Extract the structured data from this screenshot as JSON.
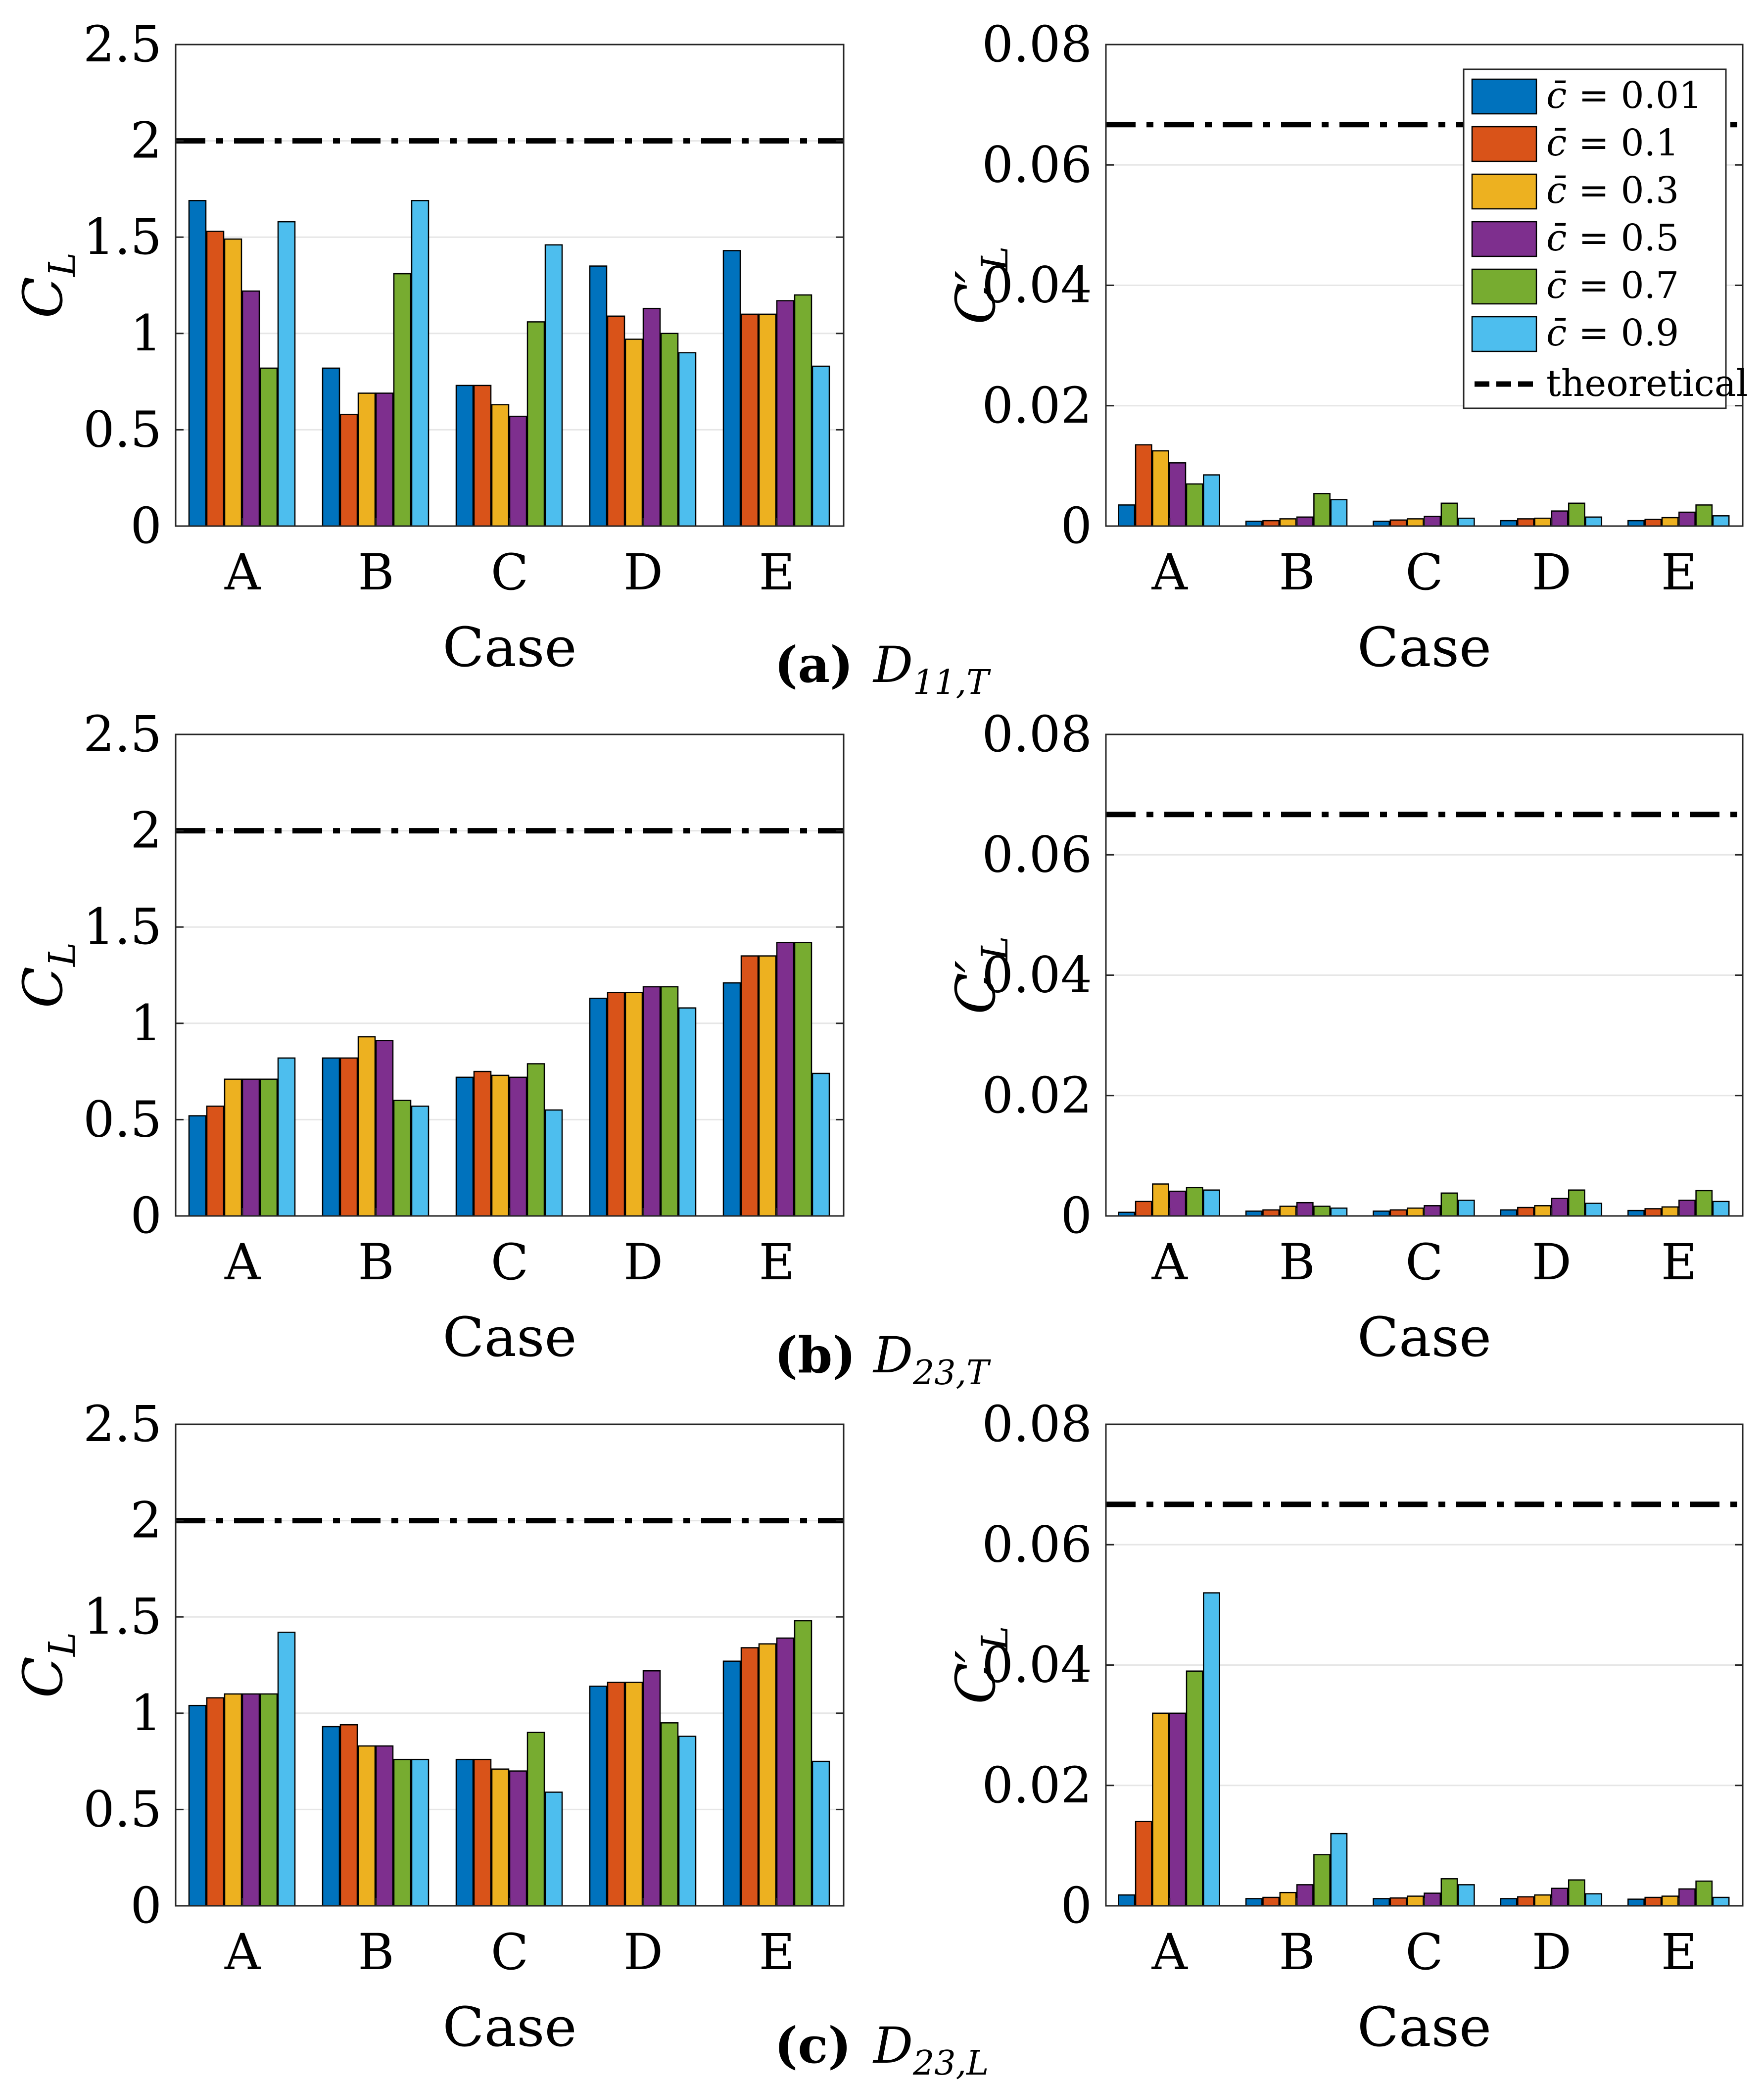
{
  "figure": {
    "colors": {
      "c001": "#0072BD",
      "c01": "#D95319",
      "c03": "#EDB120",
      "c05": "#7E2F8E",
      "c07": "#77AC30",
      "c09": "#4DBEEE",
      "theory": "#000000",
      "grid": "#e6e6e6"
    },
    "series_colors": [
      "#0072BD",
      "#D95319",
      "#EDB120",
      "#7E2F8E",
      "#77AC30",
      "#4DBEEE"
    ]
  },
  "legend": {
    "items": [
      {
        "prefix": "c̄",
        "rest": " = 0.01"
      },
      {
        "prefix": "c̄",
        "rest": " = 0.1"
      },
      {
        "prefix": "c̄",
        "rest": " = 0.3"
      },
      {
        "prefix": "c̄",
        "rest": " = 0.5"
      },
      {
        "prefix": "c̄",
        "rest": " = 0.7"
      },
      {
        "prefix": "c̄",
        "rest": " = 0.9"
      }
    ],
    "theory_label": "theoretical"
  },
  "captions": [
    {
      "tag": "(a)",
      "main": "D",
      "sub": "11,T"
    },
    {
      "tag": "(b)",
      "main": "D",
      "sub": "23,T"
    },
    {
      "tag": "(c)",
      "main": "D",
      "sub": "23,L"
    }
  ],
  "chart_data": [
    {
      "type": "bar",
      "panel": "a-left",
      "categories": [
        "A",
        "B",
        "C",
        "D",
        "E"
      ],
      "xlabel": "Case",
      "ylabel_main": "C",
      "ylabel_sub": "L",
      "ylabel_prime": "",
      "ylim": [
        0,
        2.5
      ],
      "yticks": [
        "0",
        "0.5",
        "1",
        "1.5",
        "2",
        "2.5"
      ],
      "ytick_values": [
        0,
        0.5,
        1,
        1.5,
        2,
        2.5
      ],
      "theoretical": 2,
      "series": [
        {
          "name": "c̄ = 0.01",
          "values": [
            1.69,
            0.82,
            0.73,
            1.35,
            1.43
          ]
        },
        {
          "name": "c̄ = 0.1",
          "values": [
            1.53,
            0.58,
            0.73,
            1.09,
            1.1
          ]
        },
        {
          "name": "c̄ = 0.3",
          "values": [
            1.49,
            0.69,
            0.63,
            0.97,
            1.1
          ]
        },
        {
          "name": "c̄ = 0.5",
          "values": [
            1.22,
            0.69,
            0.57,
            1.13,
            1.17
          ]
        },
        {
          "name": "c̄ = 0.7",
          "values": [
            0.82,
            1.31,
            1.06,
            1.0,
            1.2
          ]
        },
        {
          "name": "c̄ = 0.9",
          "values": [
            1.58,
            1.69,
            1.46,
            0.9,
            0.83
          ]
        }
      ]
    },
    {
      "type": "bar",
      "panel": "a-right",
      "categories": [
        "A",
        "B",
        "C",
        "D",
        "E"
      ],
      "xlabel": "Case",
      "ylabel_main": "C",
      "ylabel_sub": "L",
      "ylabel_prime": "′",
      "ylim": [
        0,
        0.08
      ],
      "yticks": [
        "0",
        "0.02",
        "0.04",
        "0.06",
        "0.08"
      ],
      "ytick_values": [
        0,
        0.02,
        0.04,
        0.06,
        0.08
      ],
      "theoretical": 0.0667,
      "series": [
        {
          "name": "c̄ = 0.01",
          "values": [
            0.0035,
            0.0008,
            0.0008,
            0.0009,
            0.0009
          ]
        },
        {
          "name": "c̄ = 0.1",
          "values": [
            0.0135,
            0.0009,
            0.001,
            0.0012,
            0.0011
          ]
        },
        {
          "name": "c̄ = 0.3",
          "values": [
            0.0125,
            0.0012,
            0.0012,
            0.0013,
            0.0014
          ]
        },
        {
          "name": "c̄ = 0.5",
          "values": [
            0.0105,
            0.0015,
            0.0016,
            0.0025,
            0.0023
          ]
        },
        {
          "name": "c̄ = 0.7",
          "values": [
            0.007,
            0.0054,
            0.0038,
            0.0038,
            0.0035
          ]
        },
        {
          "name": "c̄ = 0.9",
          "values": [
            0.0085,
            0.0044,
            0.0013,
            0.0015,
            0.0017
          ]
        }
      ]
    },
    {
      "type": "bar",
      "panel": "b-left",
      "categories": [
        "A",
        "B",
        "C",
        "D",
        "E"
      ],
      "xlabel": "Case",
      "ylabel_main": "C",
      "ylabel_sub": "L",
      "ylabel_prime": "",
      "ylim": [
        0,
        2.5
      ],
      "yticks": [
        "0",
        "0.5",
        "1",
        "1.5",
        "2",
        "2.5"
      ],
      "ytick_values": [
        0,
        0.5,
        1,
        1.5,
        2,
        2.5
      ],
      "theoretical": 2,
      "series": [
        {
          "name": "c̄ = 0.01",
          "values": [
            0.52,
            0.82,
            0.72,
            1.13,
            1.21
          ]
        },
        {
          "name": "c̄ = 0.1",
          "values": [
            0.57,
            0.82,
            0.75,
            1.16,
            1.35
          ]
        },
        {
          "name": "c̄ = 0.3",
          "values": [
            0.71,
            0.93,
            0.73,
            1.16,
            1.35
          ]
        },
        {
          "name": "c̄ = 0.5",
          "values": [
            0.71,
            0.91,
            0.72,
            1.19,
            1.42
          ]
        },
        {
          "name": "c̄ = 0.7",
          "values": [
            0.71,
            0.6,
            0.79,
            1.19,
            1.42
          ]
        },
        {
          "name": "c̄ = 0.9",
          "values": [
            0.82,
            0.57,
            0.55,
            1.08,
            0.74
          ]
        }
      ]
    },
    {
      "type": "bar",
      "panel": "b-right",
      "categories": [
        "A",
        "B",
        "C",
        "D",
        "E"
      ],
      "xlabel": "Case",
      "ylabel_main": "C",
      "ylabel_sub": "L",
      "ylabel_prime": "′",
      "ylim": [
        0,
        0.08
      ],
      "yticks": [
        "0",
        "0.02",
        "0.04",
        "0.06",
        "0.08"
      ],
      "ytick_values": [
        0,
        0.02,
        0.04,
        0.06,
        0.08
      ],
      "theoretical": 0.0667,
      "series": [
        {
          "name": "c̄ = 0.01",
          "values": [
            0.0006,
            0.0008,
            0.0008,
            0.001,
            0.0009
          ]
        },
        {
          "name": "c̄ = 0.1",
          "values": [
            0.0024,
            0.001,
            0.001,
            0.0014,
            0.0012
          ]
        },
        {
          "name": "c̄ = 0.3",
          "values": [
            0.0053,
            0.0016,
            0.0013,
            0.0017,
            0.0015
          ]
        },
        {
          "name": "c̄ = 0.5",
          "values": [
            0.0041,
            0.0022,
            0.0017,
            0.0029,
            0.0026
          ]
        },
        {
          "name": "c̄ = 0.7",
          "values": [
            0.0047,
            0.0016,
            0.0038,
            0.0043,
            0.0042
          ]
        },
        {
          "name": "c̄ = 0.9",
          "values": [
            0.0043,
            0.0013,
            0.0026,
            0.0021,
            0.0024
          ]
        }
      ]
    },
    {
      "type": "bar",
      "panel": "c-left",
      "categories": [
        "A",
        "B",
        "C",
        "D",
        "E"
      ],
      "xlabel": "Case",
      "ylabel_main": "C",
      "ylabel_sub": "L",
      "ylabel_prime": "",
      "ylim": [
        0,
        2.5
      ],
      "yticks": [
        "0",
        "0.5",
        "1",
        "1.5",
        "2",
        "2.5"
      ],
      "ytick_values": [
        0,
        0.5,
        1,
        1.5,
        2,
        2.5
      ],
      "theoretical": 2,
      "series": [
        {
          "name": "c̄ = 0.01",
          "values": [
            1.04,
            0.93,
            0.76,
            1.14,
            1.27
          ]
        },
        {
          "name": "c̄ = 0.1",
          "values": [
            1.08,
            0.94,
            0.76,
            1.16,
            1.34
          ]
        },
        {
          "name": "c̄ = 0.3",
          "values": [
            1.1,
            0.83,
            0.71,
            1.16,
            1.36
          ]
        },
        {
          "name": "c̄ = 0.5",
          "values": [
            1.1,
            0.83,
            0.7,
            1.22,
            1.39
          ]
        },
        {
          "name": "c̄ = 0.7",
          "values": [
            1.1,
            0.76,
            0.9,
            0.95,
            1.48
          ]
        },
        {
          "name": "c̄ = 0.9",
          "values": [
            1.42,
            0.76,
            0.59,
            0.88,
            0.75
          ]
        }
      ]
    },
    {
      "type": "bar",
      "panel": "c-right",
      "categories": [
        "A",
        "B",
        "C",
        "D",
        "E"
      ],
      "xlabel": "Case",
      "ylabel_main": "C",
      "ylabel_sub": "L",
      "ylabel_prime": "′",
      "ylim": [
        0,
        0.08
      ],
      "yticks": [
        "0",
        "0.02",
        "0.04",
        "0.06",
        "0.08"
      ],
      "ytick_values": [
        0,
        0.02,
        0.04,
        0.06,
        0.08
      ],
      "theoretical": 0.0667,
      "series": [
        {
          "name": "c̄ = 0.01",
          "values": [
            0.0018,
            0.0012,
            0.0012,
            0.0012,
            0.0011
          ]
        },
        {
          "name": "c̄ = 0.1",
          "values": [
            0.014,
            0.0014,
            0.0013,
            0.0015,
            0.0014
          ]
        },
        {
          "name": "c̄ = 0.3",
          "values": [
            0.032,
            0.0022,
            0.0016,
            0.0018,
            0.0016
          ]
        },
        {
          "name": "c̄ = 0.5",
          "values": [
            0.032,
            0.0035,
            0.0021,
            0.0029,
            0.0028
          ]
        },
        {
          "name": "c̄ = 0.7",
          "values": [
            0.039,
            0.0085,
            0.0045,
            0.0043,
            0.0041
          ]
        },
        {
          "name": "c̄ = 0.9",
          "values": [
            0.052,
            0.012,
            0.0035,
            0.002,
            0.0014
          ]
        }
      ]
    }
  ]
}
